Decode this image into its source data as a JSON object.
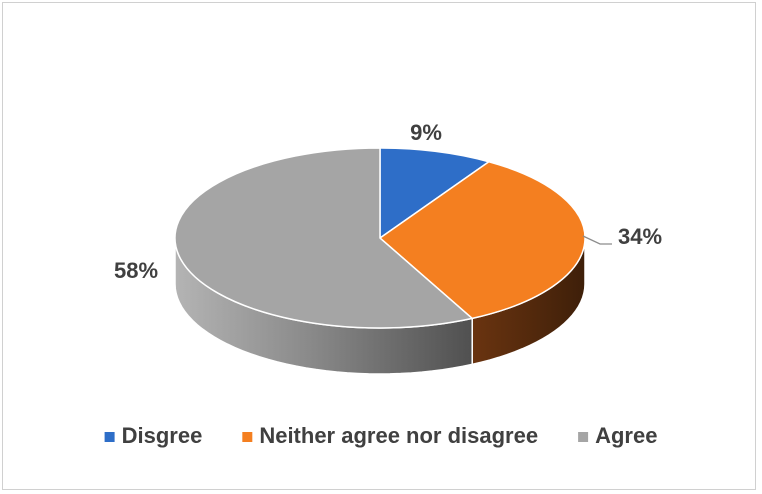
{
  "chart_data": {
    "type": "pie",
    "title": "",
    "categories": [
      "Disgree",
      "Neither agree nor disagree",
      "Agree"
    ],
    "values": [
      9,
      34,
      58
    ],
    "labels": [
      "9%",
      "34%",
      "58%"
    ],
    "colors": [
      "#2E6EC8",
      "#F47F20",
      "#A5A5A5"
    ],
    "side_colors": [
      "#1B4480",
      "#6E3612",
      "#6E6E6E"
    ],
    "style": "3d",
    "legend": "bottom"
  }
}
